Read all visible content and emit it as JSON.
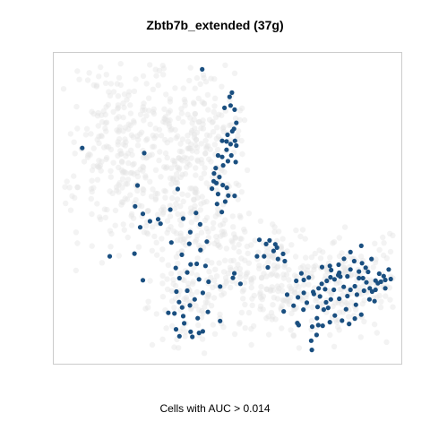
{
  "chart_data": {
    "type": "scatter",
    "title": "Zbtb7b_extended (37g)",
    "xlabel": "Cells with AUC > 0.014",
    "ylabel": "",
    "xlim": [
      0,
      100
    ],
    "ylim": [
      0,
      100
    ],
    "grid": false,
    "legend": "none",
    "colors": {
      "background_cells": "#e5e5e5",
      "highlighted_cells": "#1a4f80",
      "frame": "#cccccc"
    },
    "series": [
      {
        "name": "Cells with AUC > 0.014",
        "points": [
          [
            42.5,
            96.3
          ],
          [
            50.6,
            87.1
          ],
          [
            51.3,
            88.5
          ],
          [
            52.1,
            82.8
          ],
          [
            50.9,
            84.2
          ],
          [
            49.1,
            83.4
          ],
          [
            52.6,
            78.4
          ],
          [
            51.9,
            76.4
          ],
          [
            51.4,
            75.6
          ],
          [
            50.0,
            74.4
          ],
          [
            52.2,
            72.4
          ],
          [
            49.7,
            72.2
          ],
          [
            50.9,
            71.3
          ],
          [
            52.6,
            70.8
          ],
          [
            48.4,
            72.4
          ],
          [
            49.7,
            69.4
          ],
          [
            51.1,
            67.5
          ],
          [
            52.4,
            65.3
          ],
          [
            47.2,
            67.5
          ],
          [
            48.4,
            67.0
          ],
          [
            50.1,
            65.6
          ],
          [
            48.7,
            64.2
          ],
          [
            46.5,
            63.3
          ],
          [
            45.9,
            58.9
          ],
          [
            46.0,
            61.5
          ],
          [
            47.6,
            60.3
          ],
          [
            46.7,
            58.3
          ],
          [
            48.6,
            57.6
          ],
          [
            49.8,
            56.7
          ],
          [
            45.4,
            56.4
          ],
          [
            47.2,
            54.6
          ],
          [
            50.2,
            54.1
          ],
          [
            49.3,
            52.1
          ],
          [
            46.9,
            51.3
          ],
          [
            48.3,
            48.6
          ],
          [
            7.1,
            70.0
          ],
          [
            25.4,
            68.3
          ],
          [
            23.4,
            57.5
          ],
          [
            35.3,
            56.3
          ],
          [
            33.1,
            49.4
          ],
          [
            22.7,
            50.5
          ],
          [
            25.0,
            48.0
          ],
          [
            27.1,
            45.5
          ],
          [
            30.2,
            44.7
          ],
          [
            24.2,
            43.5
          ],
          [
            29.5,
            46.2
          ],
          [
            40.7,
            48.3
          ],
          [
            36.9,
            46.4
          ],
          [
            41.9,
            44.5
          ],
          [
            39.0,
            41.9
          ],
          [
            42.0,
            35.9
          ],
          [
            36.5,
            34.3
          ],
          [
            33.4,
            38.4
          ],
          [
            43.9,
            38.7
          ],
          [
            38.7,
            38.0
          ],
          [
            15.2,
            33.8
          ],
          [
            22.5,
            34.7
          ],
          [
            25.0,
            25.8
          ],
          [
            34.7,
            29.9
          ],
          [
            39.1,
            31.1
          ],
          [
            40.9,
            31.3
          ],
          [
            38.1,
            28.4
          ],
          [
            35.8,
            26.5
          ],
          [
            41.6,
            26.1
          ],
          [
            44.4,
            25.3
          ],
          [
            47.8,
            23.7
          ],
          [
            51.6,
            26.6
          ],
          [
            53.8,
            24.6
          ],
          [
            52.0,
            28.1
          ],
          [
            42.7,
            21.6
          ],
          [
            38.1,
            22.3
          ],
          [
            34.9,
            22.0
          ],
          [
            40.3,
            19.4
          ],
          [
            38.9,
            17.4
          ],
          [
            36.6,
            16.7
          ],
          [
            44.2,
            15.2
          ],
          [
            41.2,
            13.1
          ],
          [
            34.3,
            14.7
          ],
          [
            32.5,
            14.9
          ],
          [
            36.9,
            13.8
          ],
          [
            37.2,
            11.4
          ],
          [
            39.1,
            8.6
          ],
          [
            34.8,
            9.4
          ],
          [
            35.8,
            7.1
          ],
          [
            39.6,
            6.9
          ],
          [
            42.7,
            8.7
          ],
          [
            41.6,
            8.2
          ],
          [
            35.7,
            18.5
          ],
          [
            47.8,
            12.2
          ],
          [
            59.4,
            39.3
          ],
          [
            61.4,
            37.9
          ],
          [
            62.4,
            39.1
          ],
          [
            64.1,
            37.8
          ],
          [
            66.4,
            34.6
          ],
          [
            60.8,
            33.8
          ],
          [
            58.7,
            33.8
          ],
          [
            64.9,
            32.9
          ],
          [
            66.9,
            32.2
          ],
          [
            61.9,
            30.1
          ],
          [
            71.8,
            28.1
          ],
          [
            74.0,
            26.7
          ],
          [
            72.5,
            25.9
          ],
          [
            67.6,
            21.0
          ],
          [
            66.6,
            15.4
          ],
          [
            72.4,
            16.0
          ],
          [
            73.4,
            18.3
          ],
          [
            72.5,
            21.6
          ],
          [
            70.8,
            20.1
          ],
          [
            70.6,
            11.5
          ],
          [
            71.0,
            10.8
          ],
          [
            75.0,
            10.3
          ],
          [
            76.3,
            7.5
          ],
          [
            76.8,
            10.8
          ],
          [
            76.4,
            13.1
          ],
          [
            76.6,
            16.9
          ],
          [
            79.1,
            18.4
          ],
          [
            79.7,
            16.6
          ],
          [
            78.4,
            16.0
          ],
          [
            80.5,
            19.4
          ],
          [
            78.8,
            22.8
          ],
          [
            77.8,
            24.6
          ],
          [
            76.9,
            23.1
          ],
          [
            75.5,
            21.2
          ],
          [
            77.3,
            20.4
          ],
          [
            81.6,
            26.1
          ],
          [
            82.7,
            27.5
          ],
          [
            80.4,
            26.8
          ],
          [
            80.6,
            29.2
          ],
          [
            77.9,
            30.2
          ],
          [
            82.8,
            31.0
          ],
          [
            84.4,
            33.0
          ],
          [
            83.3,
            27.0
          ],
          [
            85.4,
            27.1
          ],
          [
            86.3,
            29.4
          ],
          [
            87.4,
            32.2
          ],
          [
            88.8,
            26.5
          ],
          [
            90.0,
            26.5
          ],
          [
            91.5,
            28.6
          ],
          [
            90.8,
            30.0
          ],
          [
            89.7,
            31.5
          ],
          [
            92.5,
            32.9
          ],
          [
            89.5,
            37.3
          ],
          [
            86.3,
            35.2
          ],
          [
            86.3,
            22.6
          ],
          [
            85.4,
            20.5
          ],
          [
            83.0,
            19.6
          ],
          [
            84.3,
            23.6
          ],
          [
            87.6,
            23.8
          ],
          [
            88.2,
            21.0
          ],
          [
            90.3,
            22.3
          ],
          [
            92.0,
            23.1
          ],
          [
            92.7,
            22.0
          ],
          [
            94.4,
            24.8
          ],
          [
            96.6,
            25.9
          ],
          [
            93.7,
            25.7
          ],
          [
            91.9,
            19.4
          ],
          [
            93.4,
            18.8
          ],
          [
            89.5,
            14.3
          ],
          [
            87.9,
            17.6
          ],
          [
            80.2,
            11.8
          ],
          [
            83.8,
            12.3
          ],
          [
            85.0,
            16.1
          ],
          [
            81.7,
            14.0
          ],
          [
            94.8,
            28.0
          ],
          [
            96.1,
            27.2
          ],
          [
            97.6,
            29.4
          ],
          [
            98.2,
            26.2
          ],
          [
            95.3,
            25.3
          ],
          [
            96.6,
            23.1
          ],
          [
            69.5,
            17.3
          ],
          [
            70.3,
            25.6
          ],
          [
            75.3,
            21.9
          ],
          [
            63.6,
            35.6
          ],
          [
            64.6,
            36.7
          ],
          [
            78.1,
            10.6
          ],
          [
            74.9,
            2.5
          ],
          [
            74.7,
            5.6
          ],
          [
            79.3,
            25.6
          ],
          [
            81.4,
            22.6
          ],
          [
            85.9,
            11.2
          ],
          [
            87.6,
            13.0
          ],
          [
            88.8,
            28.7
          ],
          [
            91.0,
            25.1
          ],
          [
            93.7,
            22.6
          ],
          [
            83.0,
            28.3
          ],
          [
            80.2,
            30.6
          ],
          [
            43.5,
            30.6
          ],
          [
            52.1,
            54.0
          ]
        ]
      }
    ]
  }
}
